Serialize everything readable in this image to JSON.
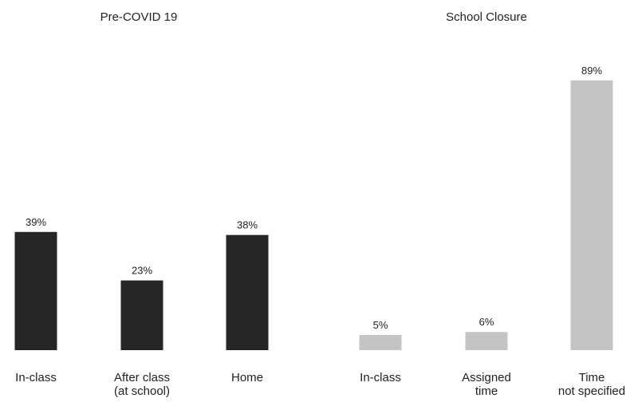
{
  "chart_data": [
    {
      "type": "bar",
      "title": "Pre-COVID 19",
      "categories": [
        [
          "In-class"
        ],
        [
          "After class",
          "(at school)"
        ],
        [
          "Home"
        ]
      ],
      "values": [
        39,
        23,
        38
      ],
      "value_labels": [
        "39%",
        "23%",
        "38%"
      ],
      "unit": "%",
      "ylim": [
        0,
        100
      ],
      "color": "#262626",
      "grid": false,
      "axes_visible": false
    },
    {
      "type": "bar",
      "title": "School Closure",
      "categories": [
        [
          "In-class"
        ],
        [
          "Assigned",
          "time"
        ],
        [
          "Time",
          "not specified"
        ]
      ],
      "values": [
        5,
        6,
        89
      ],
      "value_labels": [
        "5%",
        "6%",
        "89%"
      ],
      "unit": "%",
      "ylim": [
        0,
        100
      ],
      "color": "#c4c4c4",
      "grid": false,
      "axes_visible": false
    }
  ]
}
